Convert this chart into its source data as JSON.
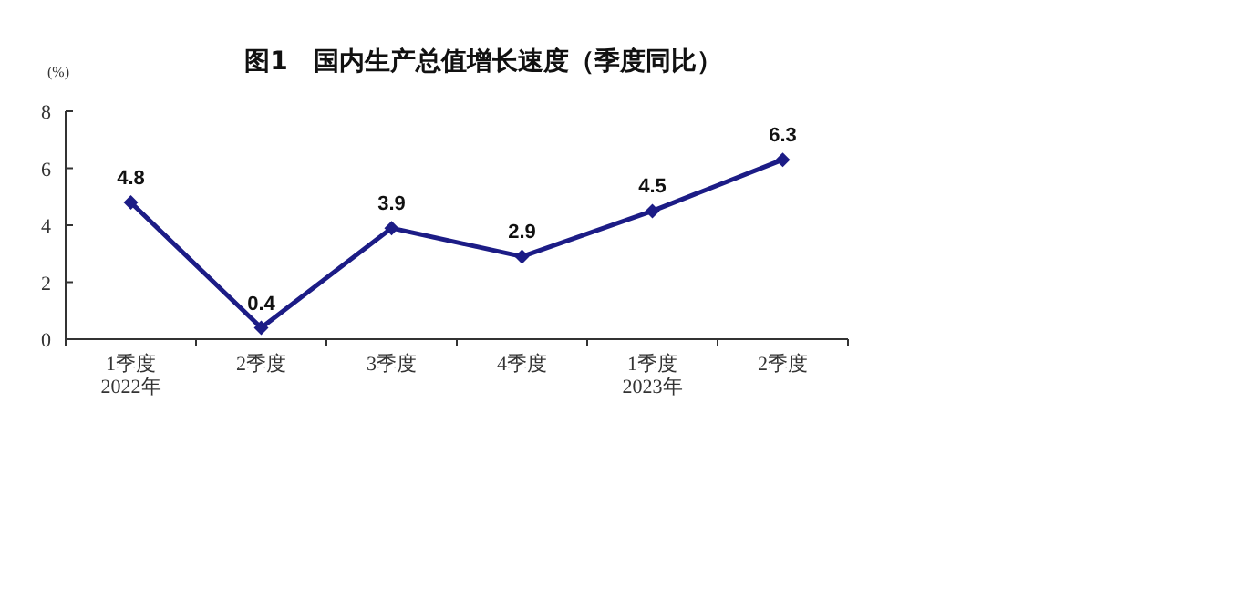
{
  "chart_data": {
    "type": "line",
    "title": "图1　国内生产总值增长速度（季度同比）",
    "ylabel": "(%)",
    "categories": [
      "1季度\n2022年",
      "2季度",
      "3季度",
      "4季度",
      "1季度\n2023年",
      "2季度"
    ],
    "series": [
      {
        "color": "#1c1c86",
        "values": [
          4.8,
          0.4,
          3.9,
          2.9,
          4.5,
          6.3
        ]
      }
    ],
    "ylim": [
      0,
      8
    ],
    "yticks": [
      0,
      2,
      4,
      6,
      8
    ],
    "marker": "diamond",
    "line_style": "solid",
    "data_labels": true
  }
}
